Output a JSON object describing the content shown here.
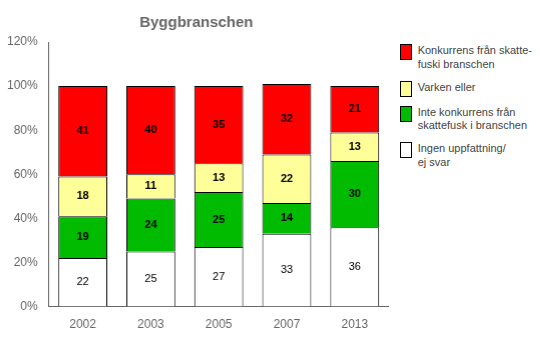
{
  "chart_data": {
    "type": "bar",
    "title": "Byggbranschen",
    "categories": [
      "2002",
      "2003",
      "2005",
      "2007",
      "2013"
    ],
    "series": [
      {
        "name": "Ingen uppfattning/\nej svar",
        "color": "#ffffff",
        "values": [
          22,
          25,
          27,
          33,
          36
        ]
      },
      {
        "name": "Inte konkurrens från\nskattefusk i branschen",
        "color": "#00bb00",
        "values": [
          19,
          24,
          25,
          14,
          30
        ]
      },
      {
        "name": "Varken eller",
        "color": "#ffff99",
        "values": [
          18,
          11,
          13,
          22,
          13
        ]
      },
      {
        "name": "Konkurrens från skatte-\nfuski branschen",
        "color": "#ff0000",
        "values": [
          41,
          40,
          35,
          32,
          21
        ]
      }
    ],
    "stacked": true,
    "data_labels": true,
    "ylim": [
      0,
      120
    ],
    "yticks": [
      {
        "value": 0,
        "label": "0%"
      },
      {
        "value": 20,
        "label": "20%"
      },
      {
        "value": 40,
        "label": "40%"
      },
      {
        "value": 60,
        "label": "60%"
      },
      {
        "value": 80,
        "label": "80%"
      },
      {
        "value": 100,
        "label": "100%"
      },
      {
        "value": 120,
        "label": "120%"
      }
    ],
    "grid": false,
    "legend": "right"
  }
}
